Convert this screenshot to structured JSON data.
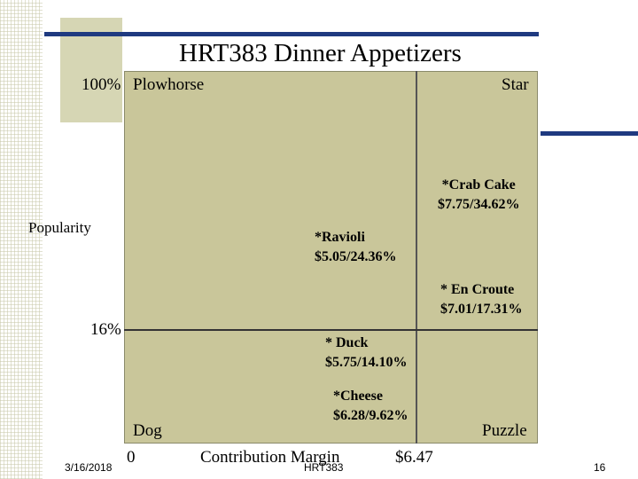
{
  "title": "HRT383 Dinner Appetizers",
  "y_axis": {
    "top": "100%",
    "label": "Popularity",
    "threshold": "16%"
  },
  "x_axis": {
    "origin": "0",
    "label": "Contribution Margin",
    "threshold": "$6.47"
  },
  "quadrants": {
    "top_left": "Plowhorse",
    "top_right": "Star",
    "bottom_left": "Dog",
    "bottom_right": "Puzzle"
  },
  "items": [
    {
      "name": "*Crab Cake",
      "stats": "$7.75/34.62%"
    },
    {
      "name": "*Ravioli",
      "stats": "$5.05/24.36%"
    },
    {
      "name": "* En Croute",
      "stats": "$7.01/17.31%"
    },
    {
      "name": "* Duck",
      "stats": "$5.75/14.10%"
    },
    {
      "name": "*Cheese",
      "stats": "$6.28/9.62%"
    }
  ],
  "footer": {
    "date": "3/16/2018",
    "course": "HRT383",
    "page": "16"
  }
}
